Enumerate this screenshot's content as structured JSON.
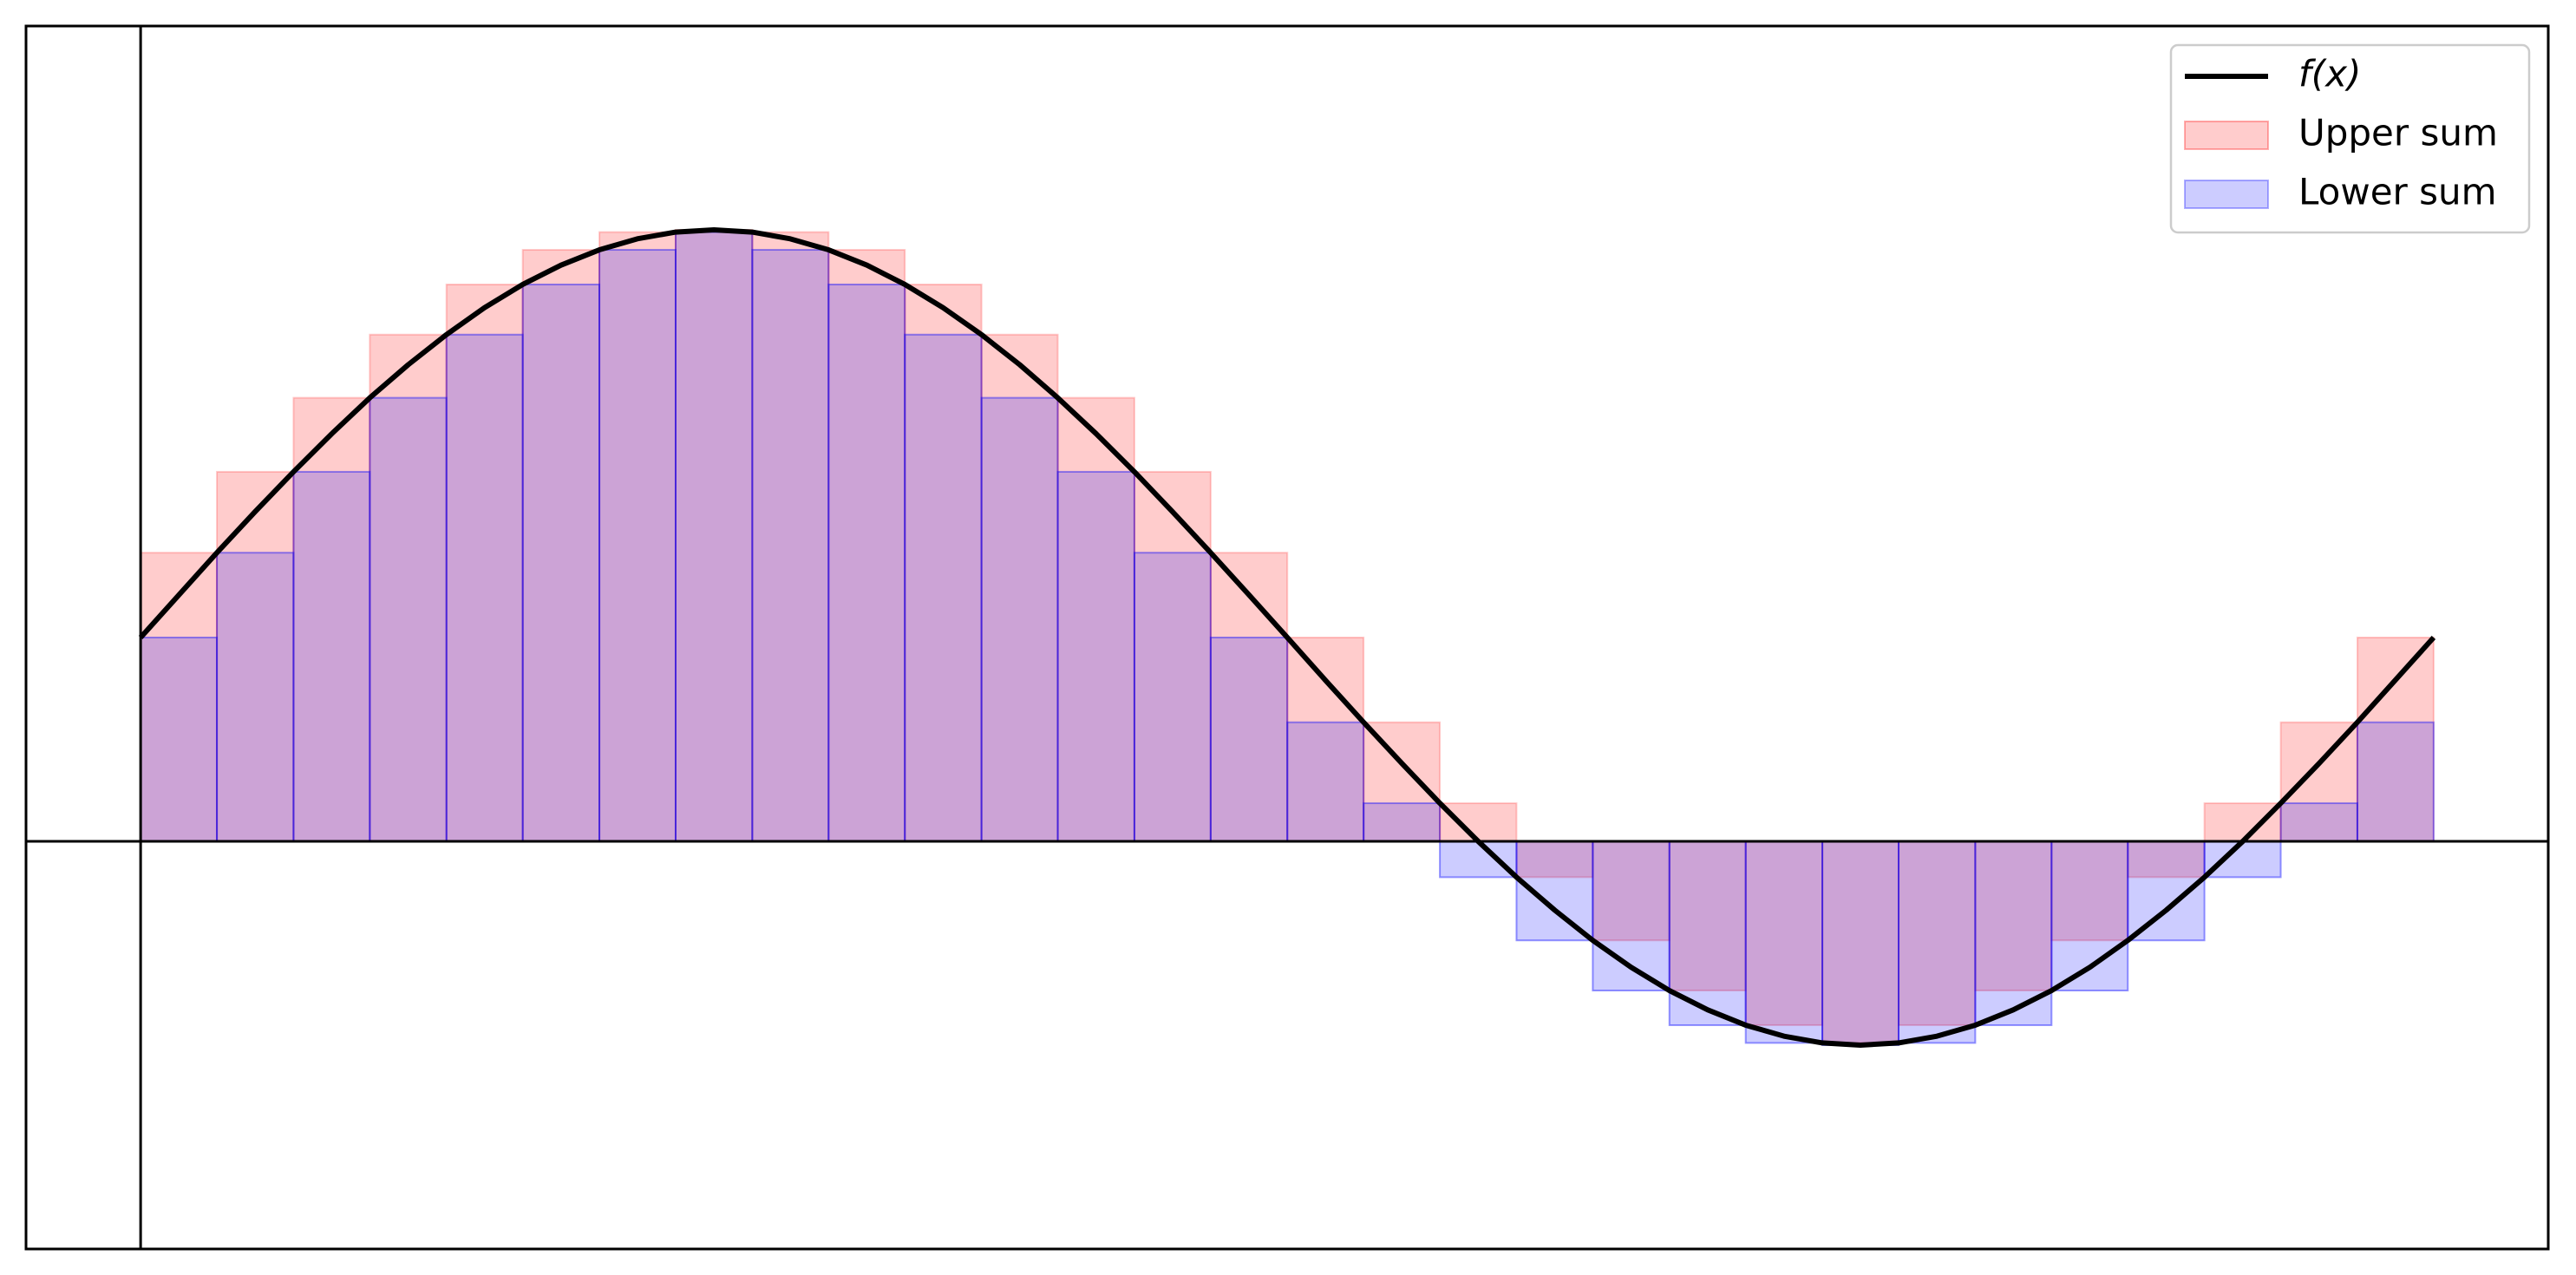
{
  "chart_data": {
    "type": "riemann",
    "x": [
      0,
      0.105,
      0.209,
      0.314,
      0.419,
      0.524,
      0.628,
      0.733,
      0.838,
      0.942,
      1.047,
      1.152,
      1.257,
      1.361,
      1.466,
      1.571,
      1.676,
      1.78,
      1.885,
      1.99,
      2.094,
      2.199,
      2.304,
      2.409,
      2.513,
      2.618,
      2.723,
      2.827,
      2.932,
      3.037,
      3.142,
      3.246,
      3.351,
      3.456,
      3.56,
      3.665,
      3.77,
      3.875,
      3.979,
      4.084,
      4.189,
      4.294,
      4.398,
      4.503,
      4.608,
      4.712,
      4.817,
      4.922,
      5.027,
      5.131,
      5.236,
      5.341,
      5.445,
      5.55,
      5.655,
      5.76,
      5.864,
      5.969,
      6.074,
      6.178,
      6.283
    ],
    "series": [
      {
        "name": "f(x)",
        "color": "#000000",
        "values": [
          1,
          1.209,
          1.416,
          1.618,
          1.813,
          2,
          2.176,
          2.338,
          2.486,
          2.618,
          2.732,
          2.827,
          2.902,
          2.956,
          2.989,
          3,
          2.989,
          2.956,
          2.902,
          2.827,
          2.732,
          2.618,
          2.486,
          2.338,
          2.176,
          2,
          1.813,
          1.618,
          1.416,
          1.209,
          1,
          0.791,
          0.584,
          0.382,
          0.187,
          0,
          -0.176,
          -0.338,
          -0.486,
          -0.618,
          -0.732,
          -0.827,
          -0.902,
          -0.956,
          -0.989,
          -1,
          -0.989,
          -0.956,
          -0.902,
          -0.827,
          -0.732,
          -0.618,
          -0.486,
          -0.338,
          -0.176,
          0,
          0.187,
          0.382,
          0.584,
          0.791,
          1
        ]
      }
    ],
    "bins": [
      0,
      0.209,
      0.419,
      0.628,
      0.838,
      1.047,
      1.257,
      1.466,
      1.676,
      1.885,
      2.094,
      2.304,
      2.513,
      2.723,
      2.932,
      3.142,
      3.351,
      3.56,
      3.77,
      3.979,
      4.189,
      4.398,
      4.608,
      4.817,
      5.027,
      5.236,
      5.445,
      5.655,
      5.864,
      6.074,
      6.283
    ],
    "upper": {
      "name": "Upper sum",
      "color": "#ff0000",
      "values": [
        1.416,
        1.813,
        2.176,
        2.486,
        2.732,
        2.902,
        2.989,
        3,
        2.989,
        2.902,
        2.732,
        2.486,
        2.176,
        1.813,
        1.416,
        1,
        0.584,
        0.187,
        -0.176,
        -0.486,
        -0.732,
        -0.902,
        -0.989,
        -0.902,
        -0.732,
        -0.486,
        -0.176,
        0.187,
        0.584,
        1
      ]
    },
    "lower": {
      "name": "Lower sum",
      "color": "#0000ff",
      "values": [
        1,
        1.416,
        1.813,
        2.176,
        2.486,
        2.732,
        2.902,
        2.989,
        2.902,
        2.732,
        2.486,
        2.176,
        1.813,
        1.416,
        1,
        0.584,
        0.187,
        -0.176,
        -0.486,
        -0.732,
        -0.902,
        -0.989,
        -1,
        -0.989,
        -0.902,
        -0.732,
        -0.486,
        -0.176,
        0.187,
        0.584
      ]
    },
    "xlim": [
      -0.314,
      6.597
    ],
    "ylim": [
      -2,
      4
    ],
    "legend": "upper right"
  }
}
